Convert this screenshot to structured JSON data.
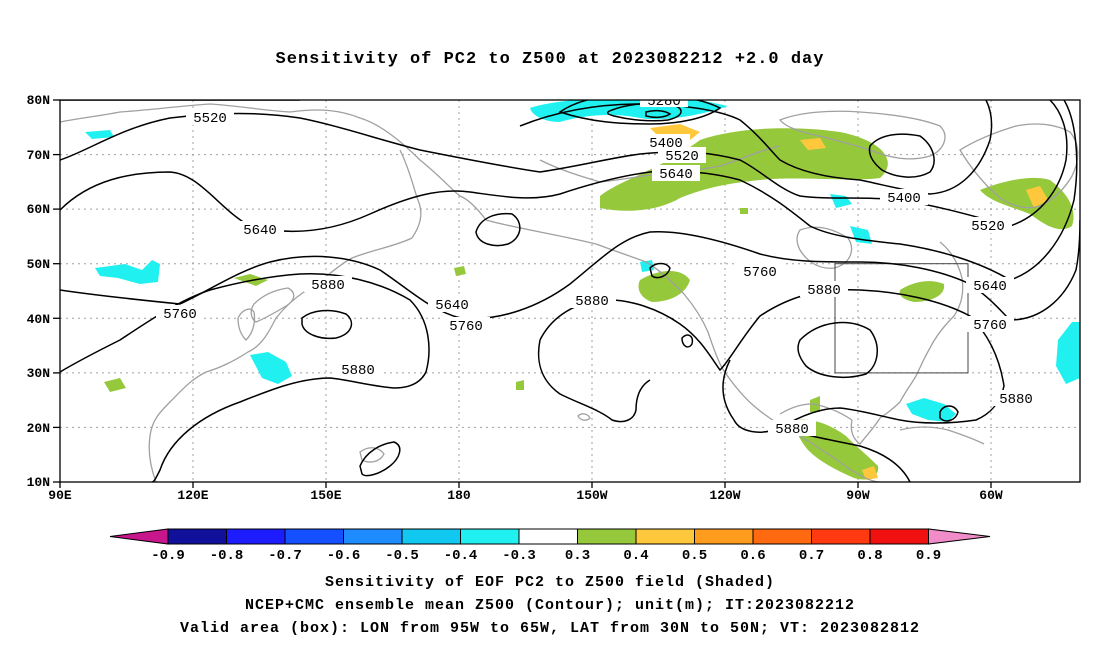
{
  "title": "Sensitivity of PC2 to Z500 at 2023082212 +2.0 day",
  "lat_labels": [
    "80N",
    "70N",
    "60N",
    "50N",
    "40N",
    "30N",
    "20N",
    "10N"
  ],
  "lon_labels": [
    "90E",
    "120E",
    "150E",
    "180",
    "150W",
    "120W",
    "90W",
    "60W"
  ],
  "contour_labels": [
    "5520",
    "5280",
    "5400",
    "5520",
    "5640",
    "5640",
    "5880",
    "5760",
    "5640",
    "5760",
    "5880",
    "5880",
    "5760",
    "5880",
    "5400",
    "5520",
    "5640",
    "5760",
    "5880",
    "5880"
  ],
  "colorbar": {
    "labels": [
      "-0.9",
      "-0.8",
      "-0.7",
      "-0.6",
      "-0.5",
      "-0.4",
      "-0.3",
      "0.3",
      "0.4",
      "0.5",
      "0.6",
      "0.7",
      "0.8",
      "0.9"
    ],
    "colors": [
      "#10109a",
      "#1c1cff",
      "#1450ff",
      "#1e8cff",
      "#10c8f0",
      "#20f0f0",
      "#ffffff",
      "#96c83c",
      "#ffc83c",
      "#ff9c1e",
      "#ff6a10",
      "#ff3a10",
      "#f01010"
    ],
    "under_color": "#c8168c",
    "over_color": "#f08cc8"
  },
  "footer": {
    "line1": "Sensitivity of EOF PC2 to Z500 field (Shaded)",
    "line2": "NCEP+CMC ensemble mean Z500 (Contour); unit(m); IT:2023082212",
    "line3": "Valid area (box): LON from 95W to 65W, LAT from 30N to 50N; VT: 2023082812"
  },
  "colors": {
    "contour": "#000000",
    "coast": "#a0a0a0",
    "grid": "#a0a0a0"
  }
}
